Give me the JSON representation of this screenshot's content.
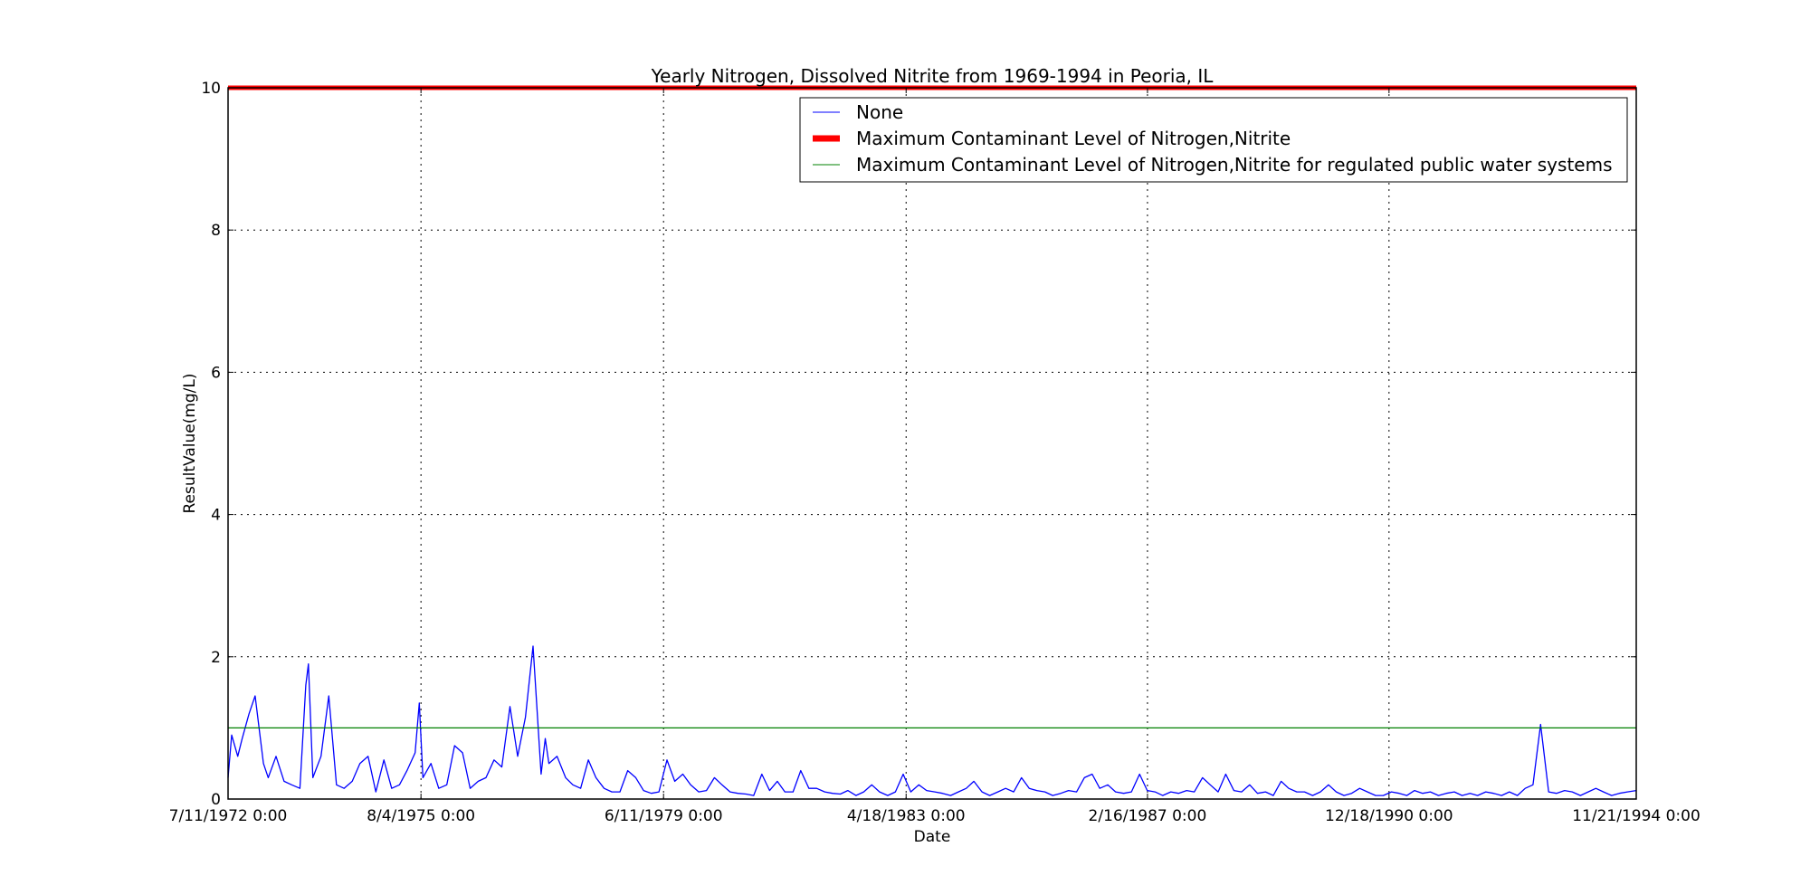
{
  "chart_data": {
    "type": "line",
    "title": "Yearly Nitrogen, Dissolved Nitrite from 1969-1994 in Peoria, IL",
    "xlabel": "Date",
    "ylabel": "ResultValue(mg/L)",
    "xlim": [
      "7/11/1972 0:00",
      "11/21/1994 0:00"
    ],
    "ylim": [
      0,
      10
    ],
    "x_ticks": [
      "7/11/1972 0:00",
      "8/4/1975 0:00",
      "6/11/1979 0:00",
      "4/18/1983 0:00",
      "2/16/1987 0:00",
      "12/18/1990 0:00",
      "11/21/1994 0:00"
    ],
    "y_ticks": [
      "0",
      "2",
      "4",
      "6",
      "8",
      "10"
    ],
    "grid": true,
    "legend_position": "top-right",
    "series": [
      {
        "name": "None",
        "color": "#0000ff",
        "x": [
          "1972-07-11",
          "1972-08-01",
          "1972-09-05",
          "1972-10-01",
          "1972-11-10",
          "1972-12-15",
          "1973-02-01",
          "1973-03-01",
          "1973-04-15",
          "1973-06-01",
          "1973-07-15",
          "1973-09-01",
          "1973-10-05",
          "1973-10-20",
          "1973-11-15",
          "1974-01-01",
          "1974-02-15",
          "1974-04-01",
          "1974-05-15",
          "1974-07-01",
          "1974-08-15",
          "1974-10-01",
          "1974-11-15",
          "1975-01-01",
          "1975-02-15",
          "1975-04-01",
          "1975-05-15",
          "1975-07-01",
          "1975-07-25",
          "1975-08-15",
          "1975-10-01",
          "1975-11-15",
          "1976-01-01",
          "1976-02-15",
          "1976-04-01",
          "1976-05-15",
          "1976-07-01",
          "1976-08-15",
          "1976-10-01",
          "1976-11-15",
          "1977-01-01",
          "1977-02-15",
          "1977-04-01",
          "1977-05-15",
          "1977-07-01",
          "1977-07-25",
          "1977-08-15",
          "1977-10-01",
          "1977-11-20",
          "1978-01-01",
          "1978-02-15",
          "1978-04-01",
          "1978-05-15",
          "1978-07-01",
          "1978-08-15",
          "1978-10-01",
          "1978-11-15",
          "1979-01-01",
          "1979-02-15",
          "1979-04-01",
          "1979-05-15",
          "1979-07-01",
          "1979-08-15",
          "1979-10-01",
          "1979-11-15",
          "1980-01-01",
          "1980-02-15",
          "1980-04-01",
          "1980-05-15",
          "1980-07-01",
          "1980-08-15",
          "1980-10-01",
          "1980-11-15",
          "1981-01-01",
          "1981-02-15",
          "1981-04-01",
          "1981-05-15",
          "1981-07-01",
          "1981-08-15",
          "1981-10-01",
          "1981-11-15",
          "1982-01-01",
          "1982-02-15",
          "1982-04-01",
          "1982-05-15",
          "1982-07-01",
          "1982-08-15",
          "1982-10-01",
          "1982-11-15",
          "1983-01-01",
          "1983-02-15",
          "1983-04-01",
          "1983-05-15",
          "1983-07-01",
          "1983-08-15",
          "1983-10-01",
          "1983-11-15",
          "1984-01-01",
          "1984-02-15",
          "1984-04-01",
          "1984-05-15",
          "1984-07-01",
          "1984-08-15",
          "1984-10-01",
          "1984-11-15",
          "1985-01-01",
          "1985-02-15",
          "1985-04-01",
          "1985-05-15",
          "1985-07-01",
          "1985-08-15",
          "1985-10-01",
          "1985-11-15",
          "1986-01-01",
          "1986-02-15",
          "1986-04-01",
          "1986-05-15",
          "1986-07-01",
          "1986-08-15",
          "1986-10-01",
          "1986-11-15",
          "1987-01-01",
          "1987-02-15",
          "1987-04-01",
          "1987-05-15",
          "1987-07-01",
          "1987-08-15",
          "1987-10-01",
          "1987-11-15",
          "1988-01-01",
          "1988-02-15",
          "1988-04-01",
          "1988-05-15",
          "1988-07-01",
          "1988-08-15",
          "1988-10-01",
          "1988-11-15",
          "1989-01-01",
          "1989-02-15",
          "1989-04-01",
          "1989-05-15",
          "1989-07-01",
          "1989-08-15",
          "1989-10-01",
          "1989-11-15",
          "1990-01-01",
          "1990-02-15",
          "1990-04-01",
          "1990-05-15",
          "1990-07-01",
          "1990-08-15",
          "1990-10-01",
          "1990-11-15",
          "1991-01-01",
          "1991-02-15",
          "1991-04-01",
          "1991-05-15",
          "1991-07-01",
          "1991-08-15",
          "1991-10-01",
          "1991-11-15",
          "1992-01-01",
          "1992-02-15",
          "1992-04-01",
          "1992-05-15",
          "1992-07-01",
          "1992-08-15",
          "1992-10-01",
          "1992-11-15",
          "1993-01-01",
          "1993-02-15",
          "1993-04-01",
          "1993-05-15",
          "1993-07-01",
          "1993-08-15",
          "1993-10-01",
          "1993-11-15",
          "1994-01-01",
          "1994-02-15",
          "1994-04-01",
          "1994-05-15",
          "1994-07-01",
          "1994-08-15",
          "1994-10-01",
          "1994-11-21"
        ],
        "y": [
          0.3,
          0.9,
          0.6,
          0.85,
          1.2,
          1.45,
          0.5,
          0.3,
          0.6,
          0.25,
          0.2,
          0.15,
          1.6,
          1.9,
          0.3,
          0.6,
          1.45,
          0.2,
          0.15,
          0.25,
          0.5,
          0.6,
          0.1,
          0.55,
          0.15,
          0.2,
          0.4,
          0.65,
          1.35,
          0.3,
          0.5,
          0.15,
          0.2,
          0.75,
          0.65,
          0.15,
          0.25,
          0.3,
          0.55,
          0.45,
          1.3,
          0.6,
          1.15,
          2.15,
          0.35,
          0.85,
          0.5,
          0.6,
          0.3,
          0.2,
          0.15,
          0.55,
          0.3,
          0.15,
          0.1,
          0.1,
          0.4,
          0.3,
          0.12,
          0.08,
          0.1,
          0.55,
          0.25,
          0.35,
          0.2,
          0.1,
          0.12,
          0.3,
          0.2,
          0.1,
          0.08,
          0.07,
          0.05,
          0.35,
          0.12,
          0.25,
          0.1,
          0.1,
          0.4,
          0.15,
          0.15,
          0.1,
          0.08,
          0.07,
          0.12,
          0.05,
          0.1,
          0.2,
          0.1,
          0.05,
          0.1,
          0.35,
          0.1,
          0.2,
          0.12,
          0.1,
          0.08,
          0.05,
          0.1,
          0.15,
          0.25,
          0.1,
          0.05,
          0.1,
          0.15,
          0.1,
          0.3,
          0.15,
          0.12,
          0.1,
          0.05,
          0.08,
          0.12,
          0.1,
          0.3,
          0.35,
          0.15,
          0.2,
          0.1,
          0.08,
          0.1,
          0.35,
          0.12,
          0.1,
          0.05,
          0.1,
          0.08,
          0.12,
          0.1,
          0.3,
          0.2,
          0.1,
          0.35,
          0.12,
          0.1,
          0.2,
          0.08,
          0.1,
          0.05,
          0.25,
          0.15,
          0.1,
          0.1,
          0.05,
          0.1,
          0.2,
          0.1,
          0.05,
          0.08,
          0.15,
          0.1,
          0.05,
          0.05,
          0.1,
          0.08,
          0.05,
          0.12,
          0.08,
          0.1,
          0.05,
          0.08,
          0.1,
          0.05,
          0.08,
          0.05,
          0.1,
          0.08,
          0.05,
          0.1,
          0.05,
          0.15,
          0.2,
          1.05,
          0.1,
          0.08,
          0.12,
          0.1,
          0.05,
          0.1,
          0.15,
          0.1,
          0.05,
          0.08,
          0.1,
          0.12
        ]
      },
      {
        "name": "Maximum Contaminant Level of Nitrogen,Nitrite",
        "color": "#ff0000",
        "x": [
          "7/11/1972 0:00",
          "11/21/1994 0:00"
        ],
        "y": [
          10,
          10
        ]
      },
      {
        "name": "Maximum Contaminant Level of Nitrogen,Nitrite for regulated public water systems",
        "color": "#008000",
        "x": [
          "7/11/1972 0:00",
          "11/21/1994 0:00"
        ],
        "y": [
          1,
          1
        ]
      }
    ]
  }
}
